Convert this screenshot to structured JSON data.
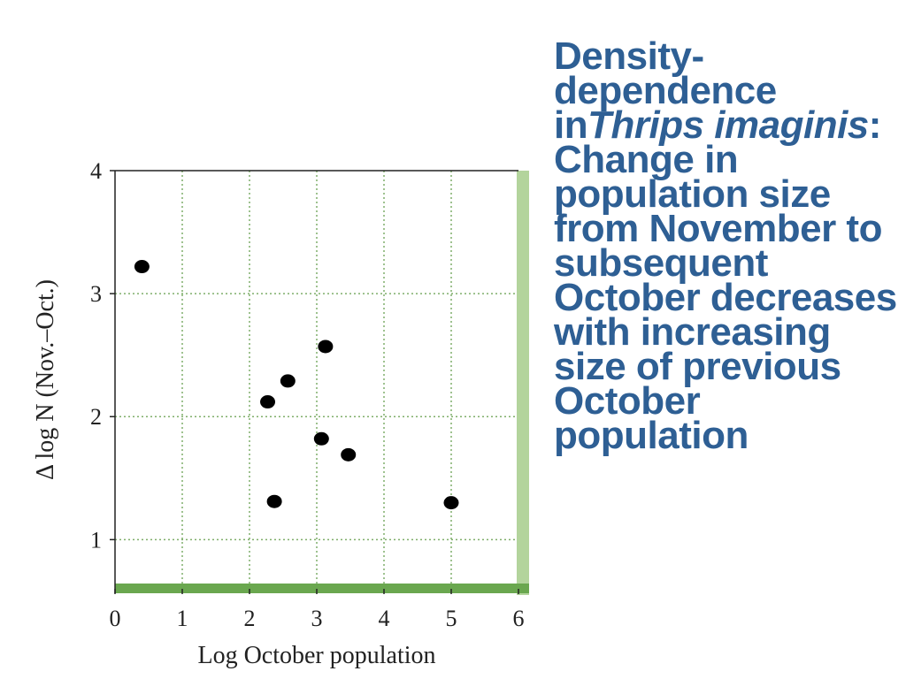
{
  "caption": {
    "part1": "Density-dependence in",
    "species": "Thrips imaginis",
    "part2": ": Change in population size from November to subsequent October decreases with increasing size of previous October population"
  },
  "chart_data": {
    "type": "scatter",
    "title": "",
    "xlabel": "Log October population",
    "ylabel": "Δ log N (Nov.–Oct.)",
    "xlim": [
      0,
      6
    ],
    "ylim": [
      0.6,
      4
    ],
    "xticks": [
      0,
      1,
      2,
      3,
      4,
      5,
      6
    ],
    "yticks": [
      1,
      2,
      3,
      4
    ],
    "grid": true,
    "points": [
      {
        "x": 0.4,
        "y": 3.22
      },
      {
        "x": 2.27,
        "y": 2.12
      },
      {
        "x": 2.57,
        "y": 2.29
      },
      {
        "x": 3.13,
        "y": 2.57
      },
      {
        "x": 3.07,
        "y": 1.82
      },
      {
        "x": 3.47,
        "y": 1.69
      },
      {
        "x": 2.37,
        "y": 1.31
      },
      {
        "x": 5.0,
        "y": 1.3
      }
    ],
    "colors": {
      "points": "#000000",
      "grid": "#7fae6a",
      "x_axis_bar": "#6aa74f",
      "right_bar": "#b3d49c",
      "frame": "#222222"
    }
  }
}
